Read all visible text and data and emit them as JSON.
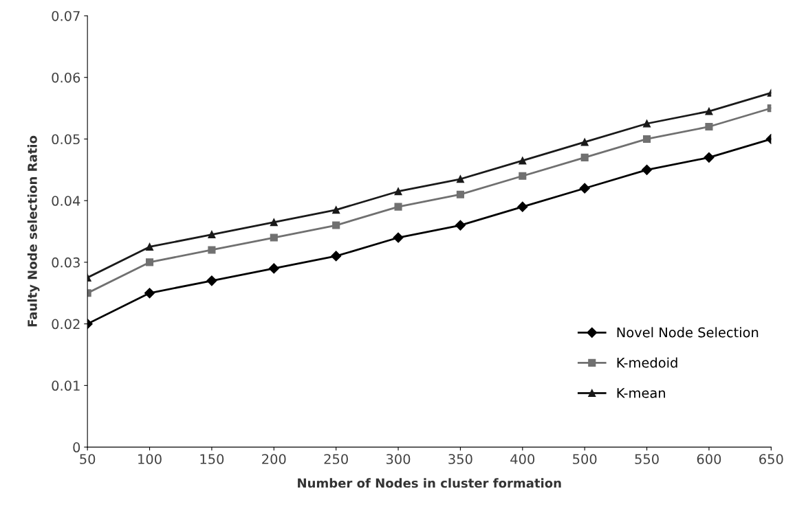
{
  "chart_data": {
    "type": "line",
    "xlabel": "Number of Nodes in cluster formation",
    "ylabel": "Faulty Node selection Ratio",
    "categories": [
      "50",
      "100",
      "150",
      "200",
      "250",
      "300",
      "350",
      "400",
      "500",
      "550",
      "600",
      "650"
    ],
    "series": [
      {
        "name": "Novel Node Selection",
        "color": "#000000",
        "marker": "diamond",
        "values": [
          0.02,
          0.025,
          0.027,
          0.029,
          0.031,
          0.034,
          0.036,
          0.039,
          0.042,
          0.045,
          0.047,
          0.05
        ]
      },
      {
        "name": "K-medoid",
        "color": "#707070",
        "marker": "square",
        "values": [
          0.025,
          0.03,
          0.032,
          0.034,
          0.036,
          0.039,
          0.041,
          0.044,
          0.047,
          0.05,
          0.052,
          0.055
        ]
      },
      {
        "name": "K-mean",
        "color": "#1a1a1a",
        "marker": "triangle",
        "values": [
          0.0275,
          0.0325,
          0.0345,
          0.0365,
          0.0385,
          0.0415,
          0.0435,
          0.0465,
          0.0495,
          0.0525,
          0.0545,
          0.0575
        ]
      }
    ],
    "ylim": [
      0,
      0.07
    ],
    "yticks": [
      0,
      0.01,
      0.02,
      0.03,
      0.04,
      0.05,
      0.06,
      0.07
    ],
    "grid": false,
    "legend": "lower right",
    "line_style": "solid"
  }
}
